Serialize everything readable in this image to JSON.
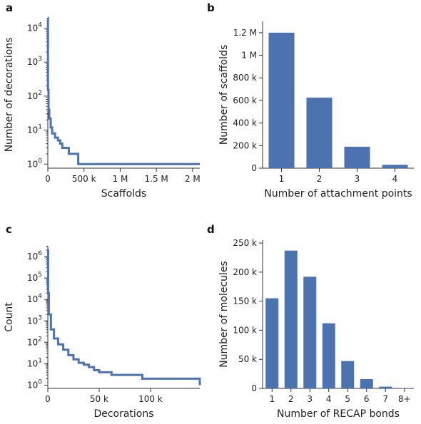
{
  "colors": {
    "series": "#4c72b0",
    "axis": "#333333"
  },
  "chart_data": [
    {
      "panel": "a",
      "type": "line",
      "xlabel": "Scaffolds",
      "ylabel": "Number of decorations",
      "yscale": "log",
      "xlim": [
        0,
        2100000
      ],
      "ylim_exp": [
        -0.12,
        4.2
      ],
      "x_ticks": [
        0,
        500000,
        1000000,
        1500000,
        2000000
      ],
      "x_tick_labels": [
        "0",
        "500 k",
        "1 M",
        "1.5 M",
        "2 M"
      ],
      "y_tick_exps": [
        0,
        1,
        2,
        3,
        4
      ],
      "x": [
        0,
        2000,
        10000,
        20000,
        40000,
        60000,
        100000,
        140000,
        170000,
        200000,
        290000,
        400000,
        420000,
        2100000
      ],
      "y": [
        20000,
        150,
        40,
        22,
        12,
        8,
        6,
        5,
        4,
        3,
        2,
        2,
        1,
        1
      ]
    },
    {
      "panel": "b",
      "type": "bar",
      "xlabel": "Number of attachment points",
      "ylabel": "Number of scaffolds",
      "ylim": [
        0,
        1300000
      ],
      "y_ticks": [
        0,
        200000,
        400000,
        600000,
        800000,
        1000000,
        1200000
      ],
      "y_tick_labels": [
        "0",
        "200 k",
        "400 k",
        "600 k",
        "800 k",
        "1 M",
        "1.2 M"
      ],
      "categories": [
        "1",
        "2",
        "3",
        "4"
      ],
      "values": [
        1200000,
        625000,
        190000,
        30000
      ]
    },
    {
      "panel": "c",
      "type": "line",
      "xlabel": "Decorations",
      "ylabel": "Count",
      "yscale": "log",
      "xlim": [
        0,
        148000
      ],
      "ylim_exp": [
        -0.15,
        6.5
      ],
      "x_ticks": [
        0,
        50000,
        100000
      ],
      "x_tick_labels": [
        "0",
        "50 k",
        "100 k"
      ],
      "y_tick_exps": [
        0,
        1,
        2,
        3,
        4,
        5,
        6
      ],
      "x": [
        0,
        300,
        1000,
        3000,
        6000,
        10000,
        15000,
        20000,
        25000,
        30000,
        35000,
        40000,
        45000,
        50000,
        62000,
        92000,
        148000
      ],
      "y": [
        2000000,
        20000,
        2000,
        400,
        150,
        80,
        45,
        25,
        16,
        11,
        9,
        7,
        5,
        4,
        3,
        2,
        1
      ]
    },
    {
      "panel": "d",
      "type": "bar",
      "xlabel": "Number of RECAP bonds",
      "ylabel": "Number of molecules",
      "ylim": [
        0,
        255000
      ],
      "y_ticks": [
        0,
        50000,
        100000,
        150000,
        200000,
        250000
      ],
      "y_tick_labels": [
        "0",
        "50 k",
        "100 k",
        "150 k",
        "200 k",
        "250 k"
      ],
      "categories": [
        "1",
        "2",
        "3",
        "4",
        "5",
        "6",
        "7",
        "8+"
      ],
      "values": [
        155000,
        237000,
        192000,
        112000,
        47000,
        16000,
        3000,
        500
      ]
    }
  ]
}
